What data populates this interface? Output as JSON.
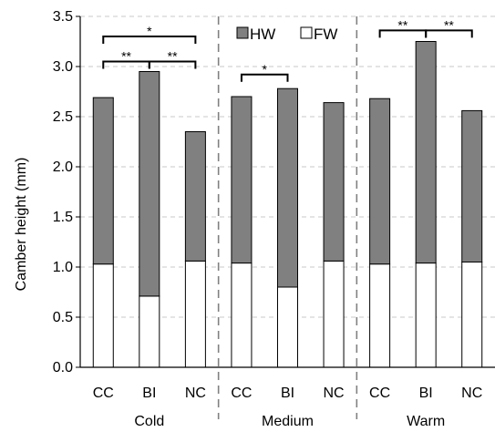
{
  "chart_data": {
    "type": "bar",
    "stacked": true,
    "ylabel": "Camber height (mm)",
    "ylim": [
      0,
      3.5
    ],
    "yticks": [
      "0.0",
      "0.5",
      "1.0",
      "1.5",
      "2.0",
      "2.5",
      "3.0",
      "3.5"
    ],
    "grid": "horizontal dashed",
    "legend_position": "top-center",
    "groups": [
      "Cold",
      "Medium",
      "Warm"
    ],
    "categories": [
      "CC",
      "BI",
      "NC",
      "CC",
      "BI",
      "NC",
      "CC",
      "BI",
      "NC"
    ],
    "series": [
      {
        "name": "FW",
        "color": "#ffffff",
        "values": [
          1.03,
          0.71,
          1.06,
          1.04,
          0.8,
          1.06,
          1.03,
          1.04,
          1.05
        ]
      },
      {
        "name": "HW",
        "color": "#808080",
        "values": [
          1.66,
          2.24,
          1.29,
          1.66,
          1.98,
          1.58,
          1.65,
          2.21,
          1.51
        ]
      }
    ],
    "totals": [
      2.69,
      2.95,
      2.35,
      2.7,
      2.78,
      2.64,
      2.68,
      3.25,
      2.56
    ],
    "significance": [
      {
        "from": 0,
        "to": 1,
        "label": "**",
        "y": 3.05
      },
      {
        "from": 1,
        "to": 2,
        "label": "**",
        "y": 3.05
      },
      {
        "from": 0,
        "to": 2,
        "label": "*",
        "y": 3.3
      },
      {
        "from": 3,
        "to": 4,
        "label": "*",
        "y": 2.92
      },
      {
        "from": 6,
        "to": 7,
        "label": "**",
        "y": 3.36
      },
      {
        "from": 7,
        "to": 8,
        "label": "**",
        "y": 3.36
      }
    ]
  }
}
